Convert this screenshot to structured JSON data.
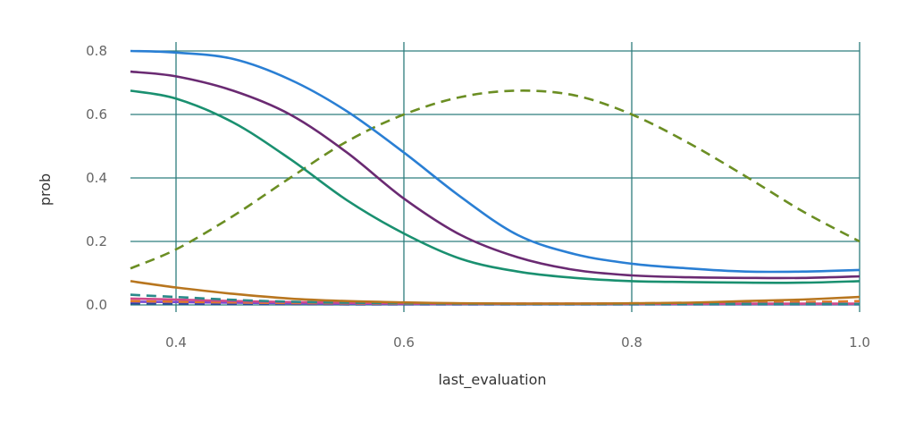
{
  "chart_data": {
    "type": "line",
    "title": "",
    "xlabel": "last_evaluation",
    "ylabel": "prob",
    "xlim": [
      0.36,
      1.0
    ],
    "ylim": [
      0.0,
      0.8
    ],
    "x_ticks": [
      0.4,
      0.6,
      0.8,
      1.0
    ],
    "x_tick_labels": [
      "0.4",
      "0.6",
      "0.8",
      "1.0"
    ],
    "y_ticks": [
      0.0,
      0.2,
      0.4,
      0.6,
      0.8
    ],
    "y_tick_labels": [
      "0.0",
      "0.2",
      "0.4",
      "0.6",
      "0.8"
    ],
    "grid": true,
    "x": [
      0.36,
      0.4,
      0.45,
      0.5,
      0.55,
      0.6,
      0.65,
      0.7,
      0.75,
      0.8,
      0.85,
      0.9,
      0.95,
      1.0
    ],
    "series": [
      {
        "name": "blue",
        "color": "#2a7fd4",
        "dash": "solid",
        "values": [
          0.8,
          0.795,
          0.775,
          0.71,
          0.61,
          0.48,
          0.34,
          0.22,
          0.16,
          0.13,
          0.115,
          0.105,
          0.105,
          0.11
        ]
      },
      {
        "name": "purple",
        "color": "#6a2a72",
        "dash": "solid",
        "values": [
          0.735,
          0.72,
          0.675,
          0.6,
          0.48,
          0.335,
          0.22,
          0.15,
          0.11,
          0.093,
          0.087,
          0.085,
          0.085,
          0.09
        ]
      },
      {
        "name": "teal-green",
        "color": "#1a9070",
        "dash": "solid",
        "values": [
          0.675,
          0.65,
          0.575,
          0.46,
          0.33,
          0.225,
          0.145,
          0.105,
          0.085,
          0.075,
          0.072,
          0.07,
          0.07,
          0.075
        ]
      },
      {
        "name": "olive-dashed",
        "color": "#6b8e23",
        "dash": "dashed",
        "values": [
          0.115,
          0.175,
          0.28,
          0.4,
          0.515,
          0.6,
          0.655,
          0.675,
          0.66,
          0.6,
          0.51,
          0.405,
          0.295,
          0.2
        ]
      },
      {
        "name": "brown",
        "color": "#b8761f",
        "dash": "solid",
        "values": [
          0.075,
          0.055,
          0.035,
          0.02,
          0.012,
          0.008,
          0.005,
          0.004,
          0.004,
          0.005,
          0.007,
          0.012,
          0.017,
          0.025
        ]
      },
      {
        "name": "teal-dashed",
        "color": "#2a8a8a",
        "dash": "dashed",
        "values": [
          0.032,
          0.025,
          0.016,
          0.01,
          0.007,
          0.005,
          0.004,
          0.003,
          0.003,
          0.003,
          0.003,
          0.003,
          0.003,
          0.003
        ]
      },
      {
        "name": "pink",
        "color": "#d04a8a",
        "dash": "solid",
        "values": [
          0.02,
          0.017,
          0.012,
          0.009,
          0.007,
          0.005,
          0.004,
          0.004,
          0.004,
          0.004,
          0.004,
          0.004,
          0.004,
          0.004
        ]
      },
      {
        "name": "orange-dashed",
        "color": "#e07a2a",
        "dash": "dashed",
        "values": [
          0.012,
          0.01,
          0.008,
          0.006,
          0.005,
          0.004,
          0.004,
          0.004,
          0.004,
          0.005,
          0.006,
          0.007,
          0.009,
          0.012
        ]
      },
      {
        "name": "violet",
        "color": "#7a4ad0",
        "dash": "solid",
        "values": [
          0.01,
          0.009,
          0.007,
          0.005,
          0.004,
          0.003,
          0.003,
          0.003,
          0.003,
          0.003,
          0.003,
          0.003,
          0.003,
          0.003
        ]
      },
      {
        "name": "navy-dashed",
        "color": "#2a4a9a",
        "dash": "dashed",
        "values": [
          0.005,
          0.004,
          0.003,
          0.003,
          0.002,
          0.002,
          0.002,
          0.002,
          0.002,
          0.002,
          0.002,
          0.002,
          0.002,
          0.002
        ]
      }
    ]
  }
}
